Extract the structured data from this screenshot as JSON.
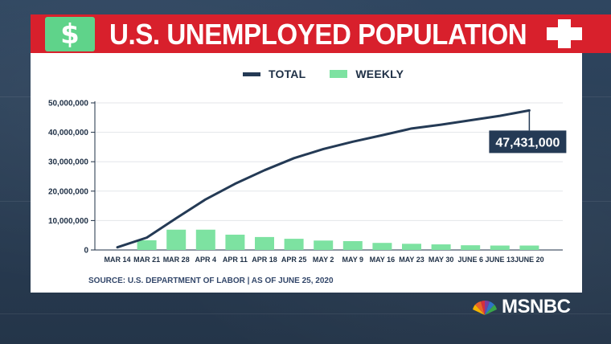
{
  "header": {
    "title": "U.S. UNEMPLOYED POPULATION",
    "icon_symbol": "$",
    "icon_name": "dollar-icon"
  },
  "legend": {
    "total_label": "TOTAL",
    "weekly_label": "WEEKLY"
  },
  "source_text": "SOURCE: U.S. DEPARTMENT OF LABOR | AS OF JUNE 25, 2020",
  "brand": {
    "name": "MSNBC",
    "logo_icon": "peacock-icon"
  },
  "colors": {
    "header_red": "#d8202c",
    "dollar_green": "#5fd38a",
    "weekly_green": "#7de2a1",
    "total_navy": "#243a55",
    "background": "#2a3e55"
  },
  "chart_data": {
    "type": "bar",
    "title": "U.S. UNEMPLOYED POPULATION",
    "xlabel": "",
    "ylabel": "",
    "ylim": [
      0,
      50000000
    ],
    "yticks": [
      "0",
      "10,000,000",
      "20,000,000",
      "30,000,000",
      "40,000,000",
      "50,000,000"
    ],
    "ytick_values": [
      0,
      10000000,
      20000000,
      30000000,
      40000000,
      50000000
    ],
    "grid": true,
    "legend_position": "top-center",
    "categories": [
      "MAR 14",
      "MAR 21",
      "MAR 28",
      "APR 4",
      "APR 11",
      "APR 18",
      "APR 25",
      "MAY 2",
      "MAY 9",
      "MAY 16",
      "MAY 23",
      "MAY 30",
      "JUNE 6",
      "JUNE 13",
      "JUNE 20"
    ],
    "series": [
      {
        "name": "WEEKLY",
        "kind": "bar",
        "values": [
          null,
          3300000,
          6900000,
          6900000,
          5200000,
          4400000,
          3800000,
          3200000,
          3000000,
          2400000,
          2100000,
          1900000,
          1600000,
          1500000,
          1500000
        ]
      },
      {
        "name": "TOTAL",
        "kind": "line",
        "values": [
          900000,
          4200000,
          10800000,
          17200000,
          22500000,
          27100000,
          31200000,
          34300000,
          36800000,
          39000000,
          41300000,
          42600000,
          44100000,
          45600000,
          47431000
        ]
      }
    ],
    "annotation": {
      "text": "47,431,000",
      "category": "JUNE 20",
      "series": "TOTAL"
    }
  }
}
